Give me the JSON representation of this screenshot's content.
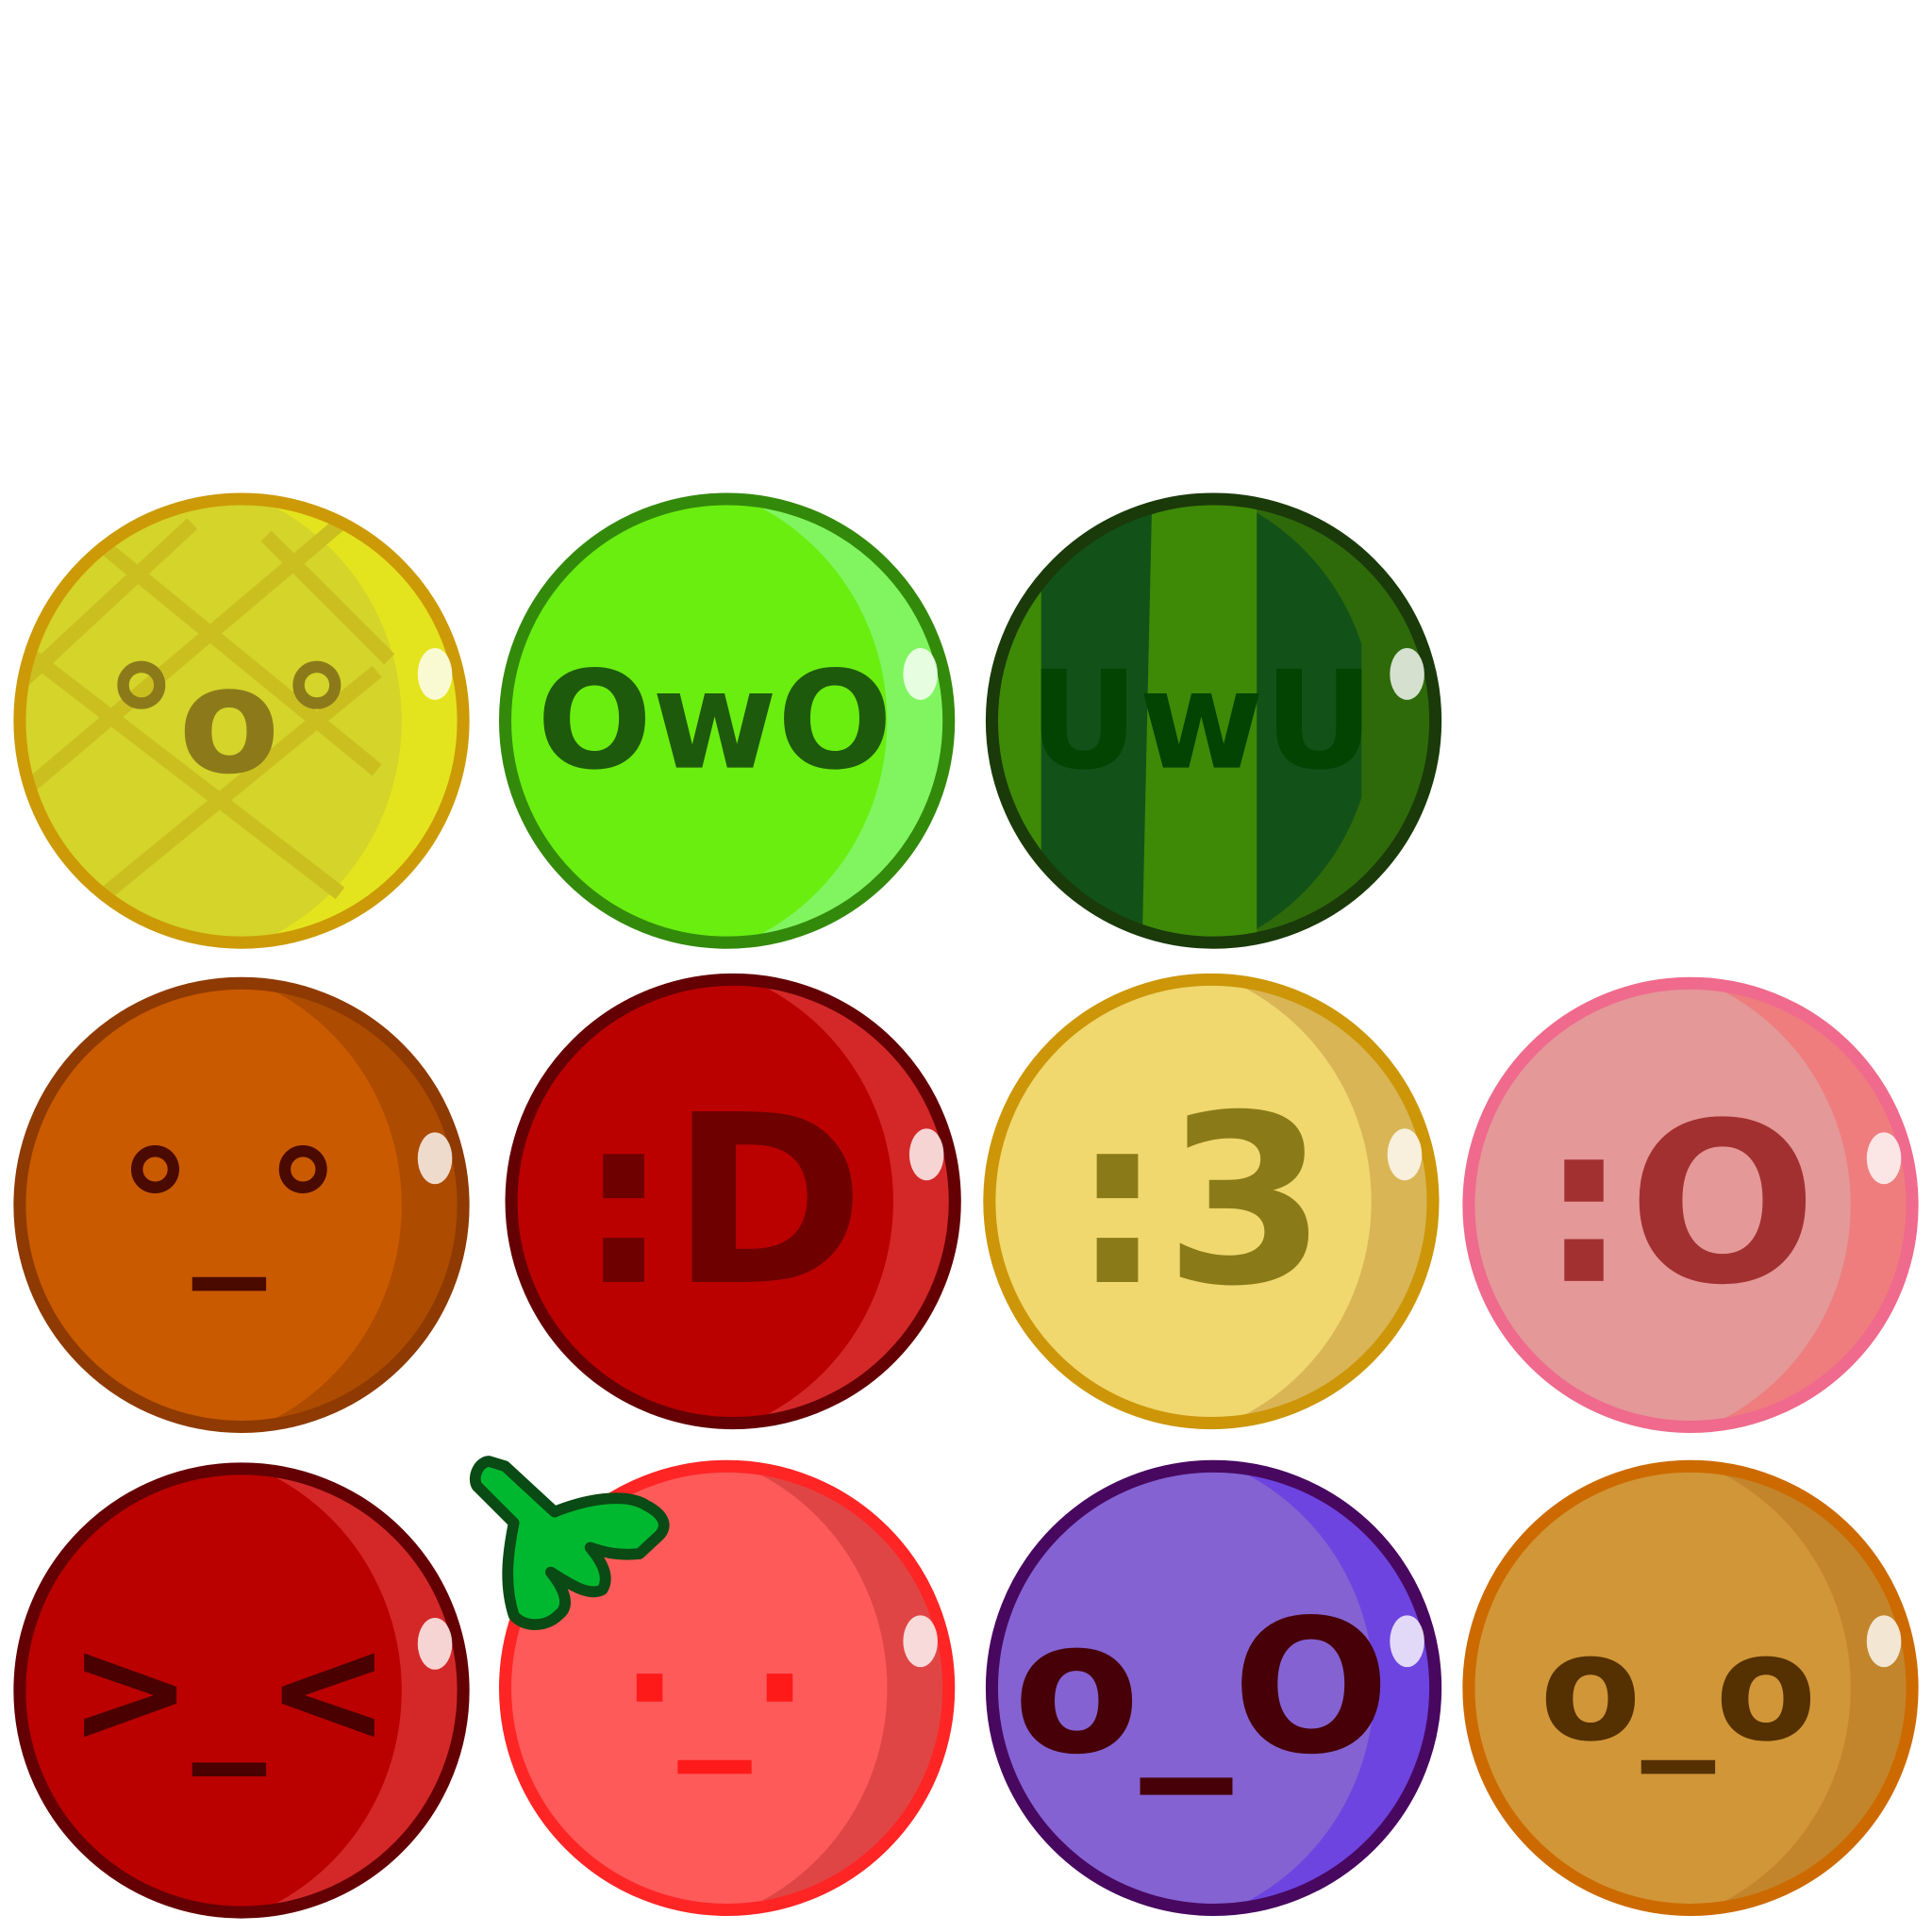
{
  "fruits": [
    {
      "face": "°o°"
    },
    {
      "face": "OwO"
    },
    {
      "face": "UwU"
    },
    {
      "face": "°_°"
    },
    {
      "face": ":D"
    },
    {
      "face": ":3"
    },
    {
      "face": ":O"
    },
    {
      "face": ">_<"
    },
    {
      "face": "·_·"
    },
    {
      "face": "o_O"
    },
    {
      "face": "o_o"
    }
  ]
}
